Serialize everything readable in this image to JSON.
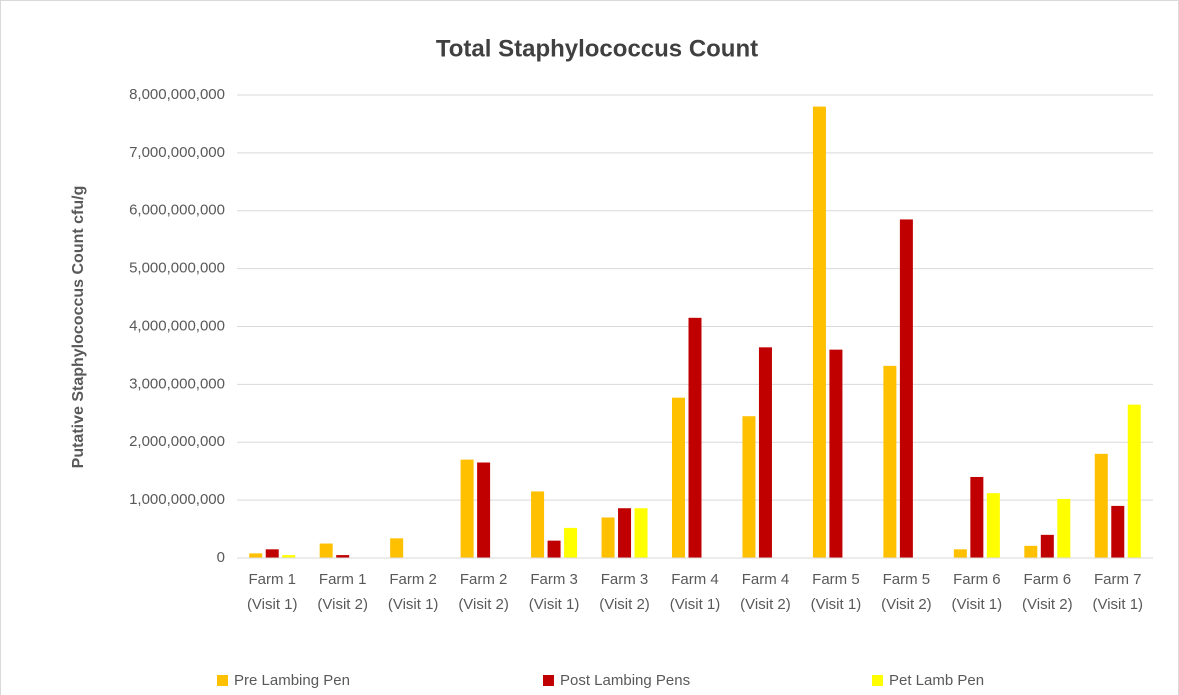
{
  "chart_data": {
    "type": "bar",
    "title": "Total Staphylococcus Count",
    "y_label": "Putative Staphylococcus Count cfu/g",
    "categories": [
      "Farm 1 (Visit 1)",
      "Farm 1 (Visit 2)",
      "Farm 2 (Visit 1)",
      "Farm 2 (Visit 2)",
      "Farm 3 (Visit 1)",
      "Farm 3 (Visit 2)",
      "Farm 4 (Visit 1)",
      "Farm 4 (Visit 2)",
      "Farm 5 (Visit 1)",
      "Farm 5 (Visit 2)",
      "Farm 6 (Visit 1)",
      "Farm 6 (Visit 2)",
      "Farm 7 (Visit 1)"
    ],
    "series": [
      {
        "name": "Pre Lambing Pen",
        "color": "#FFC000",
        "values": [
          80000000,
          250000000,
          340000000,
          1700000000,
          1150000000,
          700000000,
          2770000000,
          2450000000,
          7800000000,
          3320000000,
          150000000,
          210000000,
          1800000000
        ]
      },
      {
        "name": "Post Lambing Pens",
        "color": "#C00000",
        "values": [
          150000000,
          50000000,
          0,
          1650000000,
          300000000,
          860000000,
          4150000000,
          3640000000,
          3600000000,
          5850000000,
          1400000000,
          400000000,
          900000000
        ]
      },
      {
        "name": "Pet Lamb Pen",
        "color": "#FFFF00",
        "values": [
          50000000,
          0,
          0,
          0,
          520000000,
          860000000,
          0,
          0,
          0,
          0,
          1120000000,
          1020000000,
          2650000000
        ]
      }
    ],
    "ylim": [
      0,
      8000000000
    ],
    "yticks": [
      0,
      {
        "value": 1000000000,
        "label": "1,000,000,000"
      },
      {
        "value": 2000000000,
        "label": "2,000,000,000"
      },
      {
        "value": 3000000000,
        "label": "3,000,000,000"
      },
      {
        "value": 4000000000,
        "label": "4,000,000,000"
      },
      {
        "value": 5000000000,
        "label": "5,000,000,000"
      },
      {
        "value": 6000000000,
        "label": "6,000,000,000"
      },
      {
        "value": 7000000000,
        "label": "7,000,000,000"
      },
      {
        "value": 8000000000,
        "label": "8,000,000,000"
      }
    ],
    "grid": true,
    "legend": "bottom"
  }
}
